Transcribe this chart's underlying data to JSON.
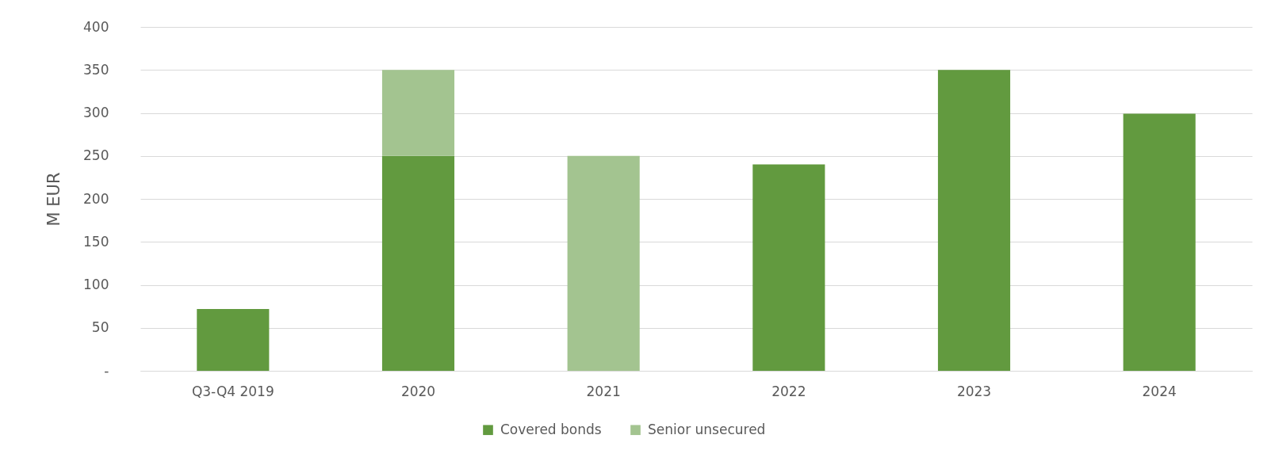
{
  "chart_data": {
    "type": "bar",
    "categories": [
      "Q3-Q4 2019",
      "2020",
      "2021",
      "2022",
      "2023",
      "2024"
    ],
    "ylabel": "M EUR",
    "series": [
      {
        "name": "Covered bonds",
        "color": "#629a3f",
        "values": [
          72,
          250,
          null,
          240,
          350,
          299
        ]
      },
      {
        "name": "Senior unsecured",
        "color": "#a3c490",
        "values": [
          null,
          100,
          250,
          null,
          null,
          null
        ]
      }
    ],
    "stacked": true,
    "ylim": [
      0,
      400
    ],
    "yticks": [
      {
        "value": 0,
        "label": "-"
      },
      50,
      100,
      150,
      200,
      250,
      300,
      350,
      400
    ],
    "grid": "y",
    "legend": "bottom"
  }
}
